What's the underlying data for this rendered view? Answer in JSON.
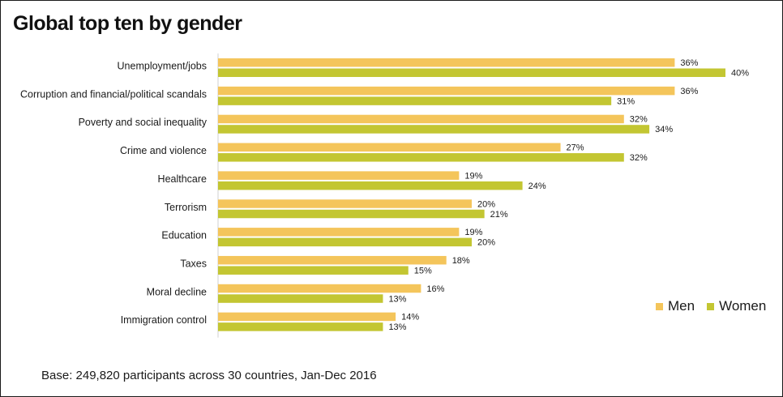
{
  "chart_data": {
    "type": "bar",
    "orientation": "horizontal",
    "title": "Global top ten by gender",
    "categories": [
      "Unemployment/jobs",
      "Corruption and financial/political scandals",
      "Poverty and social inequality",
      "Crime and violence",
      "Healthcare",
      "Terrorism",
      "Education",
      "Taxes",
      "Moral decline",
      "Immigration control"
    ],
    "series": [
      {
        "name": "Men",
        "color": "#F4C55B",
        "values": [
          36,
          36,
          32,
          27,
          19,
          20,
          19,
          18,
          16,
          14
        ]
      },
      {
        "name": "Women",
        "color": "#C3C632",
        "values": [
          40,
          31,
          34,
          32,
          24,
          21,
          20,
          15,
          13,
          13
        ]
      }
    ],
    "value_suffix": "%",
    "xlim": [
      0,
      40
    ],
    "grid": false,
    "legend": "bottom-right"
  },
  "footnote": "Base: 249,820 participants across 30 countries, Jan-Dec 2016"
}
